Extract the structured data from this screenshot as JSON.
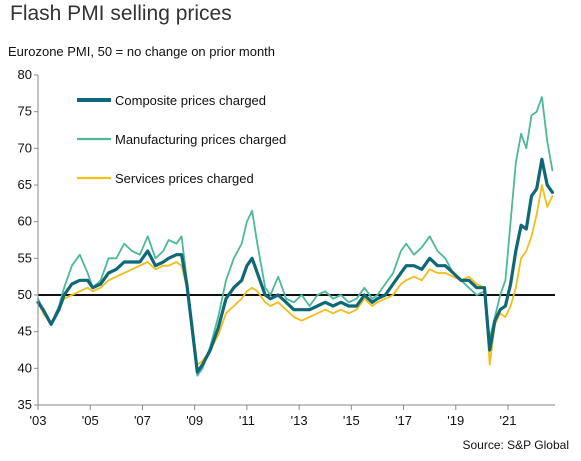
{
  "chart_data": {
    "type": "line",
    "title": "Flash PMI selling prices",
    "subtitle": "Eurozone PMI, 50 = no change on prior month",
    "source": "Source: S&P Global",
    "xlim": [
      2003,
      2022.8
    ],
    "ylim": [
      35,
      80
    ],
    "yticks": [
      35,
      40,
      45,
      50,
      55,
      60,
      65,
      70,
      75,
      80
    ],
    "xticks": [
      {
        "x": 2003,
        "label": "'03"
      },
      {
        "x": 2005,
        "label": "'05"
      },
      {
        "x": 2007,
        "label": "'07"
      },
      {
        "x": 2009,
        "label": "'09"
      },
      {
        "x": 2011,
        "label": "'11"
      },
      {
        "x": 2013,
        "label": "'13"
      },
      {
        "x": 2015,
        "label": "'15"
      },
      {
        "x": 2017,
        "label": "'17"
      },
      {
        "x": 2019,
        "label": "'19"
      },
      {
        "x": 2021,
        "label": "'21"
      }
    ],
    "reference_line": 50,
    "legend_position": "top-left",
    "series": [
      {
        "name": "Manufacturing prices charged",
        "color": "#4db89a",
        "x": [
          2003.0,
          2003.2,
          2003.5,
          2003.8,
          2004.0,
          2004.3,
          2004.6,
          2004.9,
          2005.1,
          2005.4,
          2005.7,
          2006.0,
          2006.3,
          2006.6,
          2006.9,
          2007.2,
          2007.5,
          2007.8,
          2008.0,
          2008.3,
          2008.5,
          2008.7,
          2008.9,
          2009.1,
          2009.3,
          2009.6,
          2009.9,
          2010.2,
          2010.5,
          2010.8,
          2011.0,
          2011.2,
          2011.4,
          2011.7,
          2011.9,
          2012.2,
          2012.5,
          2012.8,
          2013.1,
          2013.4,
          2013.7,
          2014.0,
          2014.3,
          2014.6,
          2014.9,
          2015.2,
          2015.5,
          2015.8,
          2016.0,
          2016.3,
          2016.6,
          2016.9,
          2017.1,
          2017.4,
          2017.7,
          2018.0,
          2018.3,
          2018.6,
          2018.9,
          2019.2,
          2019.5,
          2019.8,
          2020.1,
          2020.3,
          2020.5,
          2020.7,
          2020.9,
          2021.1,
          2021.3,
          2021.5,
          2021.7,
          2021.9,
          2022.1,
          2022.3,
          2022.5,
          2022.7
        ],
        "values": [
          49.5,
          48.0,
          46.0,
          48.5,
          51.0,
          54.0,
          55.5,
          53.0,
          51.0,
          52.0,
          55.0,
          55.0,
          57.0,
          56.0,
          55.5,
          58.0,
          55.0,
          56.0,
          57.5,
          57.0,
          58.0,
          52.0,
          45.0,
          39.0,
          40.0,
          43.0,
          47.0,
          52.0,
          55.0,
          57.0,
          60.0,
          61.5,
          57.0,
          51.0,
          50.0,
          52.5,
          49.5,
          49.0,
          50.0,
          48.5,
          50.0,
          50.5,
          49.5,
          50.0,
          49.0,
          49.5,
          51.0,
          49.5,
          50.0,
          51.5,
          53.0,
          56.0,
          57.0,
          55.5,
          56.5,
          58.0,
          56.0,
          55.0,
          53.0,
          52.0,
          51.0,
          50.0,
          50.5,
          44.0,
          47.0,
          50.0,
          52.0,
          60.0,
          68.0,
          72.0,
          70.0,
          74.5,
          75.0,
          77.0,
          71.0,
          67.0
        ]
      },
      {
        "name": "Services prices charged",
        "color": "#f2be19",
        "x": [
          2003.0,
          2003.2,
          2003.5,
          2003.8,
          2004.0,
          2004.3,
          2004.6,
          2004.9,
          2005.1,
          2005.4,
          2005.7,
          2006.0,
          2006.3,
          2006.6,
          2006.9,
          2007.2,
          2007.5,
          2007.8,
          2008.0,
          2008.3,
          2008.5,
          2008.7,
          2008.9,
          2009.1,
          2009.3,
          2009.6,
          2009.9,
          2010.2,
          2010.5,
          2010.8,
          2011.0,
          2011.2,
          2011.4,
          2011.7,
          2011.9,
          2012.2,
          2012.5,
          2012.8,
          2013.1,
          2013.4,
          2013.7,
          2014.0,
          2014.3,
          2014.6,
          2014.9,
          2015.2,
          2015.5,
          2015.8,
          2016.0,
          2016.3,
          2016.6,
          2016.9,
          2017.1,
          2017.4,
          2017.7,
          2018.0,
          2018.3,
          2018.6,
          2018.9,
          2019.2,
          2019.5,
          2019.8,
          2020.1,
          2020.3,
          2020.5,
          2020.7,
          2020.9,
          2021.1,
          2021.3,
          2021.5,
          2021.7,
          2021.9,
          2022.1,
          2022.3,
          2022.5,
          2022.7
        ],
        "values": [
          49.0,
          47.5,
          46.0,
          48.0,
          49.5,
          50.0,
          50.5,
          51.0,
          50.5,
          51.0,
          52.0,
          52.5,
          53.0,
          53.5,
          54.0,
          54.5,
          53.5,
          54.0,
          54.0,
          54.5,
          54.0,
          51.0,
          46.0,
          40.5,
          41.0,
          42.5,
          44.5,
          47.5,
          48.5,
          49.5,
          50.5,
          51.0,
          50.5,
          49.0,
          48.5,
          49.0,
          48.0,
          47.0,
          46.5,
          47.0,
          47.5,
          48.0,
          47.5,
          48.0,
          47.5,
          48.0,
          49.5,
          48.5,
          49.0,
          49.5,
          50.0,
          51.5,
          52.0,
          52.5,
          52.0,
          53.5,
          53.0,
          53.0,
          52.5,
          52.0,
          52.5,
          51.5,
          51.0,
          40.5,
          46.0,
          47.5,
          47.0,
          48.5,
          51.0,
          55.0,
          56.0,
          58.0,
          61.0,
          65.0,
          62.0,
          63.5
        ]
      },
      {
        "name": "Composite prices charged",
        "color": "#0e6877",
        "x": [
          2003.0,
          2003.2,
          2003.5,
          2003.8,
          2004.0,
          2004.3,
          2004.6,
          2004.9,
          2005.1,
          2005.4,
          2005.7,
          2006.0,
          2006.3,
          2006.6,
          2006.9,
          2007.2,
          2007.5,
          2007.8,
          2008.0,
          2008.3,
          2008.5,
          2008.7,
          2008.9,
          2009.1,
          2009.3,
          2009.6,
          2009.9,
          2010.2,
          2010.5,
          2010.8,
          2011.0,
          2011.2,
          2011.4,
          2011.7,
          2011.9,
          2012.2,
          2012.5,
          2012.8,
          2013.1,
          2013.4,
          2013.7,
          2014.0,
          2014.3,
          2014.6,
          2014.9,
          2015.2,
          2015.5,
          2015.8,
          2016.0,
          2016.3,
          2016.6,
          2016.9,
          2017.1,
          2017.4,
          2017.7,
          2018.0,
          2018.3,
          2018.6,
          2018.9,
          2019.2,
          2019.5,
          2019.8,
          2020.1,
          2020.3,
          2020.5,
          2020.7,
          2020.9,
          2021.1,
          2021.3,
          2021.5,
          2021.7,
          2021.9,
          2022.1,
          2022.3,
          2022.5,
          2022.7
        ],
        "values": [
          49.0,
          48.0,
          46.0,
          48.0,
          50.0,
          51.5,
          52.0,
          52.0,
          51.0,
          51.5,
          53.0,
          53.5,
          54.5,
          54.5,
          54.5,
          56.0,
          54.0,
          54.5,
          55.0,
          55.5,
          55.5,
          51.5,
          45.5,
          39.5,
          40.5,
          42.5,
          45.5,
          49.5,
          51.0,
          52.0,
          54.0,
          55.0,
          53.0,
          50.0,
          49.5,
          50.0,
          49.0,
          48.0,
          48.0,
          48.0,
          48.5,
          49.0,
          48.5,
          49.0,
          48.5,
          48.5,
          50.0,
          49.0,
          49.5,
          50.0,
          51.5,
          53.0,
          54.0,
          54.0,
          53.5,
          55.0,
          54.0,
          54.0,
          53.0,
          52.0,
          52.0,
          51.0,
          51.0,
          42.5,
          46.5,
          48.0,
          48.5,
          51.5,
          56.0,
          59.5,
          59.0,
          63.5,
          64.5,
          68.5,
          65.0,
          64.0
        ]
      }
    ],
    "legend_order": [
      2,
      0,
      1
    ]
  }
}
